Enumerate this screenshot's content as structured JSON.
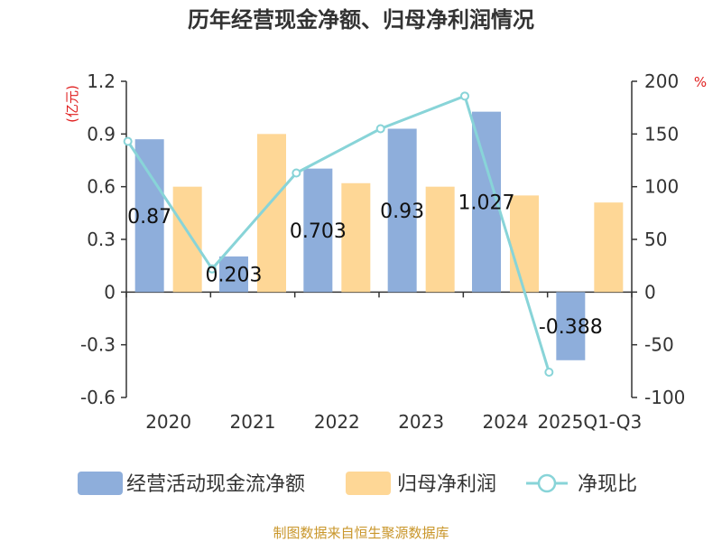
{
  "chart_data": {
    "type": "bar",
    "title": "历年经营现金净额、归母净利润情况",
    "categories": [
      "2020",
      "2021",
      "2022",
      "2023",
      "2024",
      "2025Q1-Q3"
    ],
    "series": [
      {
        "name": "经营活动现金流净额",
        "kind": "bar",
        "axis": "left",
        "color": "#8eaedb",
        "values": [
          0.87,
          0.203,
          0.703,
          0.93,
          1.027,
          -0.388
        ],
        "labels": [
          "0.87",
          "0.203",
          "0.703",
          "0.93",
          "1.027",
          "-0.388"
        ]
      },
      {
        "name": "归母净利润",
        "kind": "bar",
        "axis": "left",
        "color": "#fed796",
        "values": [
          0.6,
          0.9,
          0.62,
          0.6,
          0.55,
          0.51
        ]
      },
      {
        "name": "净现比",
        "kind": "line",
        "axis": "right",
        "color": "#88d4d8",
        "values": [
          143,
          22,
          113,
          155,
          186,
          -76
        ]
      }
    ],
    "y_left": {
      "unit": "(亿元)",
      "min": -0.6,
      "max": 1.2,
      "ticks": [
        "1.2",
        "0.9",
        "0.6",
        "0.3",
        "0",
        "-0.3",
        "-0.6"
      ]
    },
    "y_right": {
      "unit": "%",
      "min": -100,
      "max": 200,
      "ticks": [
        "200",
        "150",
        "100",
        "50",
        "0",
        "-50",
        "-100"
      ]
    },
    "legend_position": "bottom",
    "source": "制图数据来自恒生聚源数据库"
  }
}
